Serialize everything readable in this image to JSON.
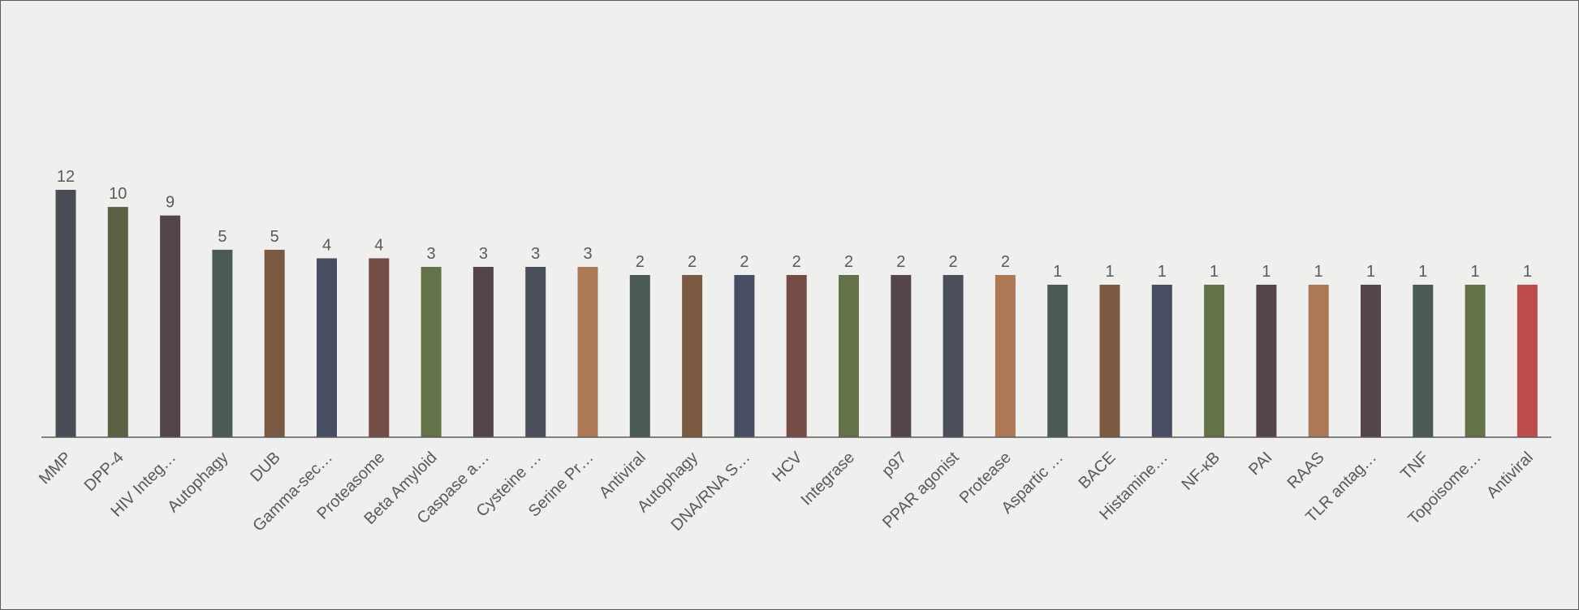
{
  "chart_data": {
    "type": "bar",
    "title": "",
    "xlabel": "",
    "ylabel": "",
    "categories": [
      "MMP",
      "DPP-4",
      "HIV Integ…",
      "Autophagy",
      "DUB",
      "Gamma-sec…",
      "Proteasome",
      "Beta Amyloid",
      "Caspase a…",
      "Cysteine …",
      "Serine Pr…",
      "Antiviral",
      "Autophagy",
      "DNA/RNA S…",
      "HCV",
      "Integrase",
      "p97",
      "PPAR agonist",
      "Protease",
      "Aspartic …",
      "BACE",
      "Histamine…",
      "NF-κB",
      "PAI",
      "RAAS",
      "TLR antag…",
      "TNF",
      "Topoisome…",
      "Antiviral"
    ],
    "values": [
      12,
      10,
      9,
      5,
      5,
      4,
      4,
      3,
      3,
      3,
      3,
      2,
      2,
      2,
      2,
      2,
      2,
      2,
      2,
      1,
      1,
      1,
      1,
      1,
      1,
      1,
      1,
      1,
      1
    ],
    "bar_colors": [
      "#484d56",
      "#5b6143",
      "#524449",
      "#4a5a56",
      "#7a5a42",
      "#484e61",
      "#744b45",
      "#637249",
      "#554549",
      "#4a4f5b",
      "#ad7955",
      "#4a5a56",
      "#7a5a42",
      "#484e61",
      "#744b45",
      "#637249",
      "#554549",
      "#4a4f5b",
      "#ad7955",
      "#4a5a56",
      "#7a5a42",
      "#484e61",
      "#637249",
      "#554549",
      "#ad7955",
      "#554549",
      "#4a5a56",
      "#637249",
      "#bd4d4e"
    ],
    "grid": false,
    "legend": "none"
  }
}
